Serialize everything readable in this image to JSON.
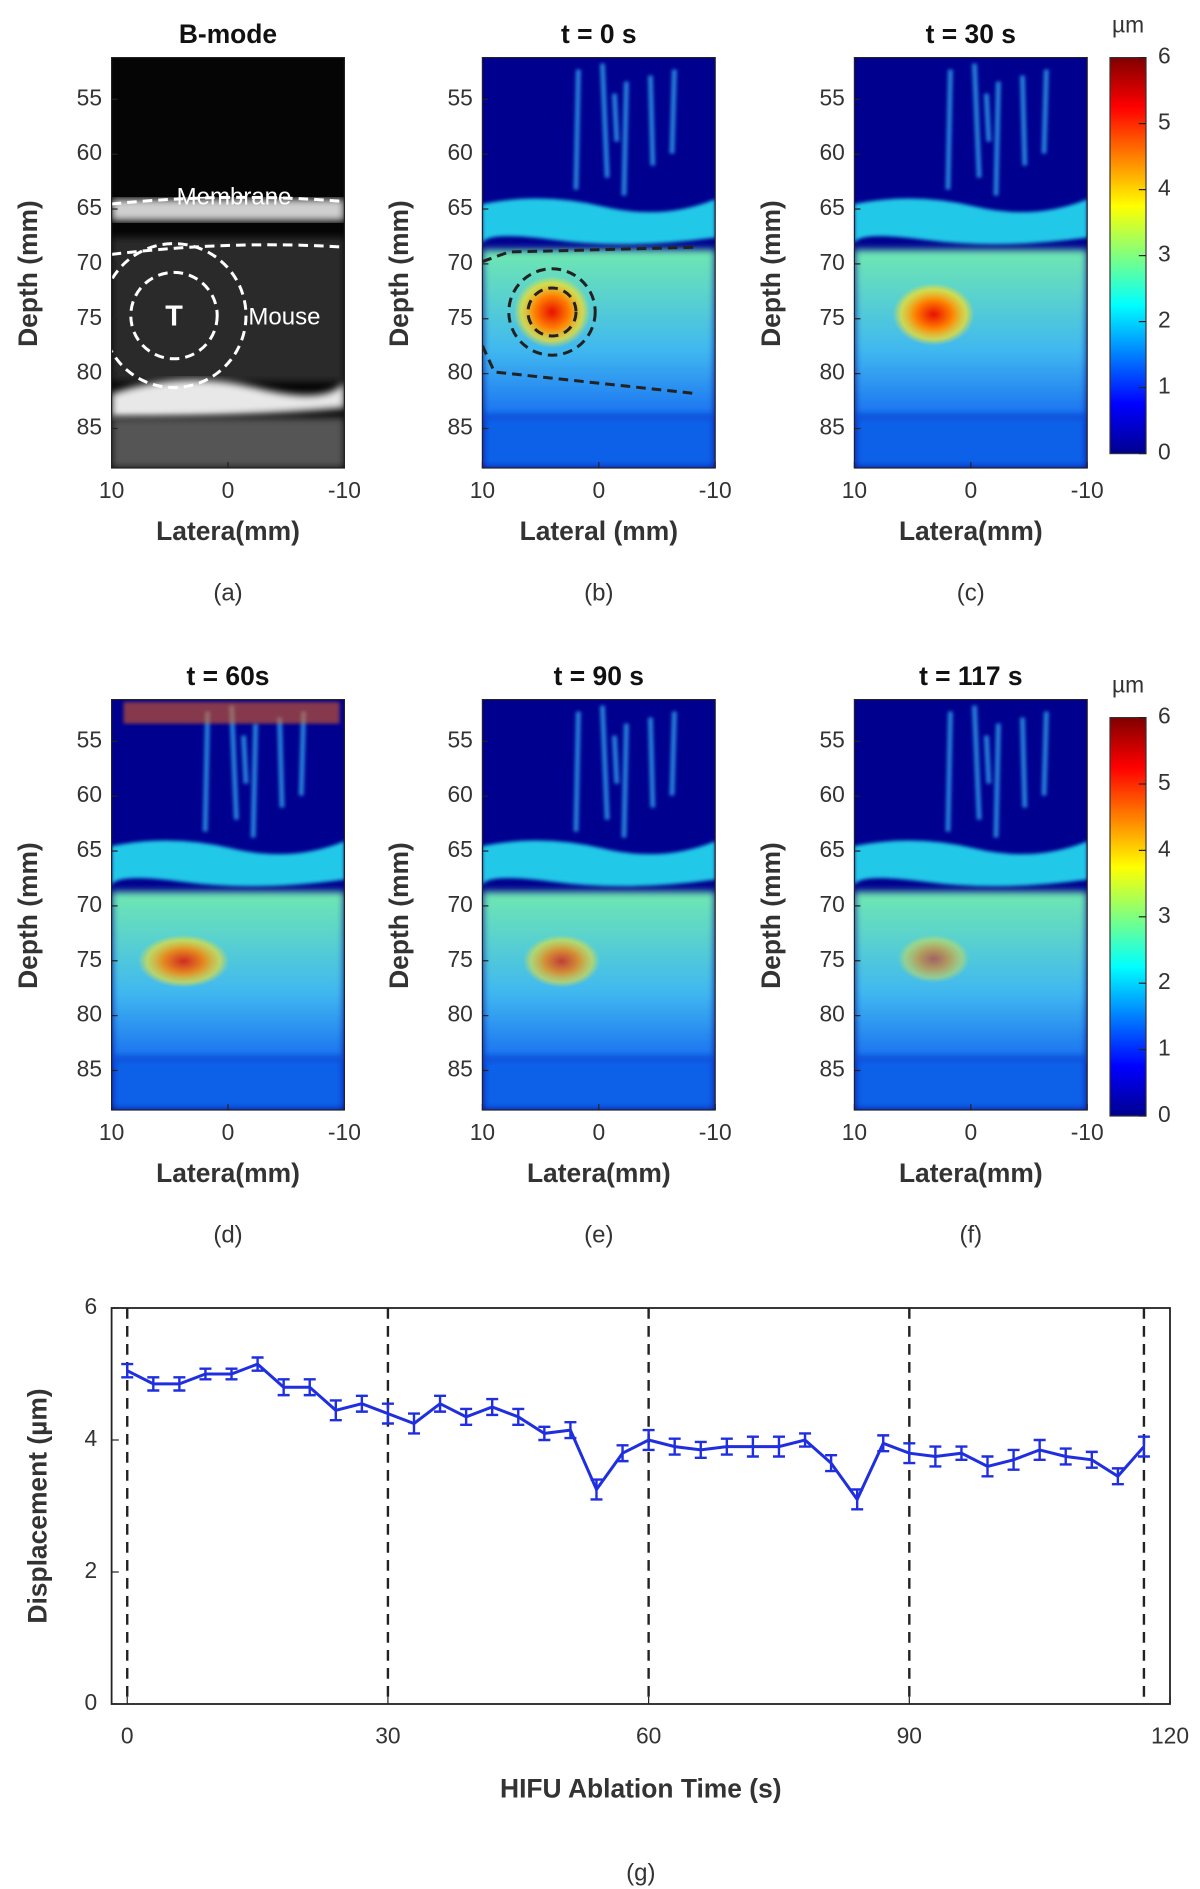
{
  "panels": {
    "xlim": [
      10,
      -10
    ],
    "ylim": [
      51.2,
      88.6
    ],
    "xticks": [
      10,
      0,
      -10
    ],
    "yticks": [
      55,
      60,
      65,
      70,
      75,
      80,
      85
    ],
    "items": [
      {
        "title": "B-mode",
        "xlabel": "Latera(mm)",
        "ylabel": "Depth (mm)",
        "caption": "(a)",
        "annotations": [
          "Membrane",
          "Mouse",
          "T"
        ]
      },
      {
        "title": "t = 0 s",
        "xlabel": "Lateral (mm)",
        "ylabel": "Depth (mm)",
        "caption": "(b)"
      },
      {
        "title": "t = 30 s",
        "xlabel": "Latera(mm)",
        "ylabel": "Depth (mm)",
        "caption": "(c)"
      },
      {
        "title": "t = 60s",
        "xlabel": "Latera(mm)",
        "ylabel": "Depth (mm)",
        "caption": "(d)"
      },
      {
        "title": "t = 90 s",
        "xlabel": "Latera(mm)",
        "ylabel": "Depth (mm)",
        "caption": "(e)"
      },
      {
        "title": "t = 117 s",
        "xlabel": "Latera(mm)",
        "ylabel": "Depth (mm)",
        "caption": "(f)"
      }
    ]
  },
  "colorbars": [
    {
      "label": "µm",
      "lim": [
        0,
        6
      ],
      "ticks": [
        0,
        1,
        2,
        3,
        4,
        5,
        6
      ]
    },
    {
      "label": "µm",
      "lim": [
        0,
        6
      ],
      "ticks": [
        0,
        1,
        2,
        3,
        4,
        5,
        6
      ]
    }
  ],
  "chart_data": {
    "type": "line",
    "xlabel": "HIFU Ablation Time (s)",
    "ylabel": "Displacement (µm)",
    "caption": "(g)",
    "color": "#1f2fe0",
    "x": [
      0,
      3,
      6,
      9,
      12,
      15,
      18,
      21,
      24,
      27,
      30,
      33,
      36,
      39,
      42,
      45,
      48,
      51,
      54,
      57,
      60,
      63,
      66,
      69,
      72,
      75,
      78,
      81,
      84,
      87,
      90,
      93,
      96,
      99,
      102,
      105,
      108,
      111,
      114,
      117
    ],
    "values": [
      5.05,
      4.85,
      4.85,
      5.0,
      5.0,
      5.15,
      4.8,
      4.8,
      4.45,
      4.55,
      4.4,
      4.25,
      4.55,
      4.35,
      4.5,
      4.35,
      4.1,
      4.15,
      3.25,
      3.8,
      4.0,
      3.9,
      3.85,
      3.9,
      3.9,
      3.9,
      4.0,
      3.65,
      3.1,
      3.95,
      3.8,
      3.75,
      3.8,
      3.6,
      3.7,
      3.85,
      3.75,
      3.7,
      3.45,
      3.9
    ],
    "errors": [
      0.1,
      0.1,
      0.1,
      0.08,
      0.08,
      0.1,
      0.12,
      0.12,
      0.15,
      0.12,
      0.15,
      0.15,
      0.12,
      0.12,
      0.12,
      0.12,
      0.1,
      0.12,
      0.15,
      0.12,
      0.15,
      0.12,
      0.12,
      0.12,
      0.15,
      0.15,
      0.1,
      0.12,
      0.15,
      0.12,
      0.15,
      0.15,
      0.1,
      0.15,
      0.15,
      0.15,
      0.12,
      0.12,
      0.12,
      0.15
    ],
    "xlim": [
      -1.8,
      120
    ],
    "ylim": [
      0,
      6
    ],
    "xticks": [
      0,
      30,
      60,
      90,
      120
    ],
    "yticks": [
      0,
      2,
      4,
      6
    ],
    "vlines": [
      0,
      30,
      60,
      90,
      117
    ]
  }
}
